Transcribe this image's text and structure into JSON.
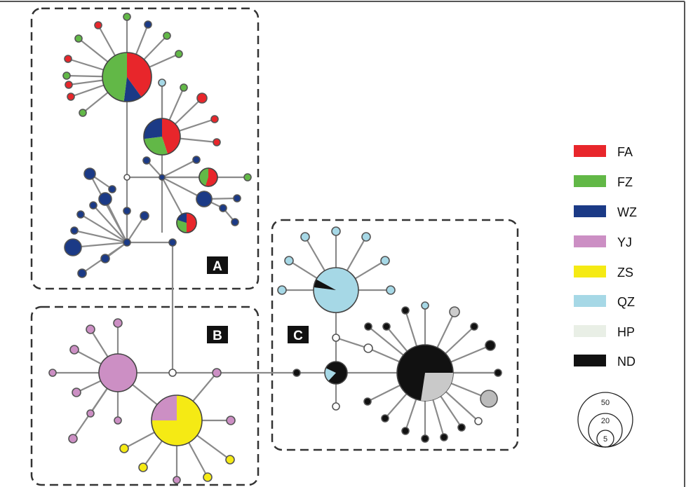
{
  "groups": [
    {
      "label": "A"
    },
    {
      "label": "B"
    },
    {
      "label": "C"
    }
  ],
  "legend": [
    {
      "name": "FA",
      "color": "#e8262b"
    },
    {
      "name": "FZ",
      "color": "#62b847"
    },
    {
      "name": "WZ",
      "color": "#1b3a86"
    },
    {
      "name": "YJ",
      "color": "#cc8fc4"
    },
    {
      "name": "ZS",
      "color": "#f5ea14"
    },
    {
      "name": "QZ",
      "color": "#a6d8e6"
    },
    {
      "name": "HP",
      "color": "#e9efe6"
    },
    {
      "name": "ND",
      "color": "#111111"
    }
  ],
  "size_scale": [
    {
      "label": "50"
    },
    {
      "label": "20"
    },
    {
      "label": "5"
    }
  ]
}
